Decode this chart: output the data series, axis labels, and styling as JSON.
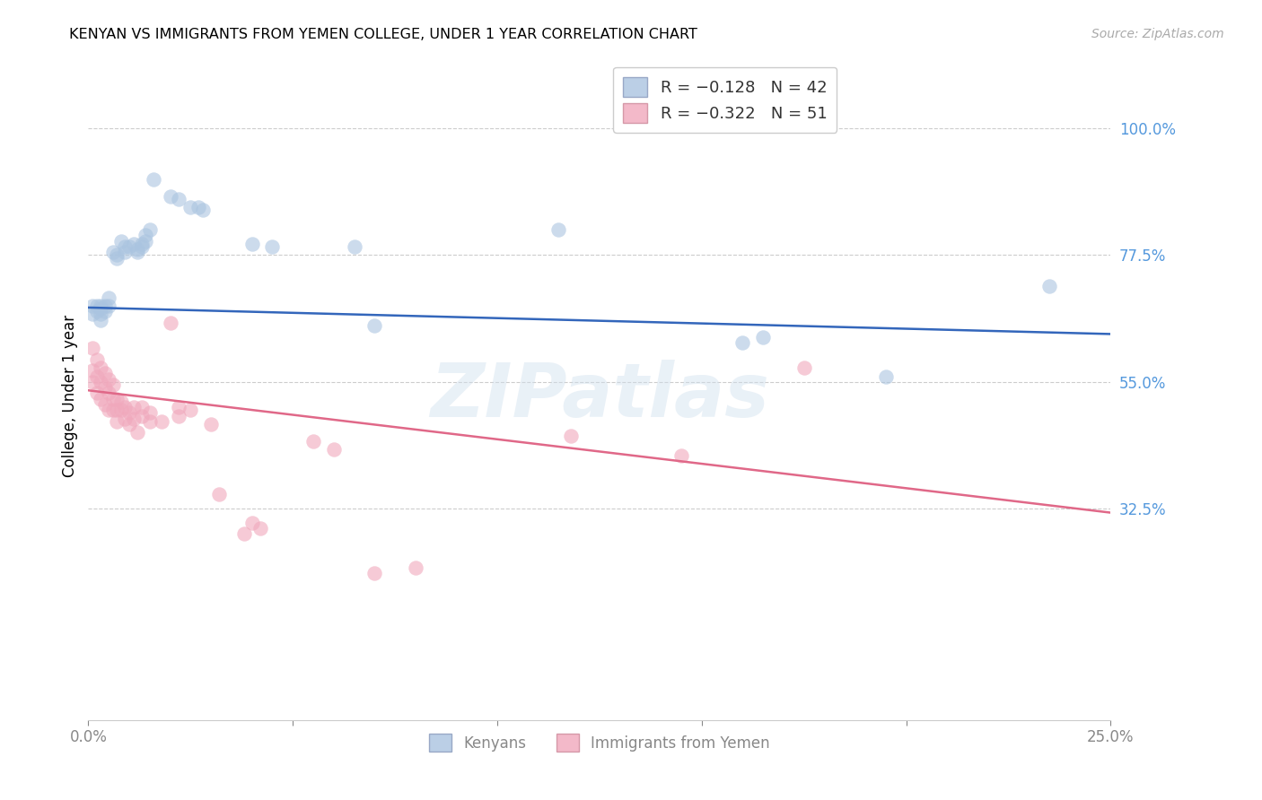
{
  "title": "KENYAN VS IMMIGRANTS FROM YEMEN COLLEGE, UNDER 1 YEAR CORRELATION CHART",
  "source": "Source: ZipAtlas.com",
  "ylabel_label": "College, Under 1 year",
  "legend_entries": [
    {
      "label": "R = −0.128   N = 42",
      "color": "#aac4e0"
    },
    {
      "label": "R = −0.322   N = 51",
      "color": "#f0a8bc"
    }
  ],
  "legend_bottom": [
    "Kenyans",
    "Immigrants from Yemen"
  ],
  "xlim": [
    0.0,
    0.25
  ],
  "ylim": [
    -0.05,
    1.1
  ],
  "watermark": "ZIPatlas",
  "blue_color": "#aac4e0",
  "pink_color": "#f0a8bc",
  "blue_line_color": "#3366bb",
  "pink_line_color": "#e06888",
  "blue_scatter": [
    [
      0.001,
      0.685
    ],
    [
      0.001,
      0.67
    ],
    [
      0.002,
      0.685
    ],
    [
      0.002,
      0.675
    ],
    [
      0.003,
      0.685
    ],
    [
      0.003,
      0.68
    ],
    [
      0.003,
      0.67
    ],
    [
      0.003,
      0.66
    ],
    [
      0.004,
      0.685
    ],
    [
      0.004,
      0.675
    ],
    [
      0.005,
      0.7
    ],
    [
      0.005,
      0.685
    ],
    [
      0.006,
      0.78
    ],
    [
      0.007,
      0.775
    ],
    [
      0.007,
      0.77
    ],
    [
      0.008,
      0.8
    ],
    [
      0.009,
      0.79
    ],
    [
      0.009,
      0.78
    ],
    [
      0.01,
      0.79
    ],
    [
      0.011,
      0.795
    ],
    [
      0.012,
      0.785
    ],
    [
      0.012,
      0.78
    ],
    [
      0.013,
      0.795
    ],
    [
      0.013,
      0.79
    ],
    [
      0.014,
      0.81
    ],
    [
      0.014,
      0.8
    ],
    [
      0.015,
      0.82
    ],
    [
      0.016,
      0.91
    ],
    [
      0.02,
      0.88
    ],
    [
      0.022,
      0.875
    ],
    [
      0.025,
      0.86
    ],
    [
      0.027,
      0.86
    ],
    [
      0.028,
      0.855
    ],
    [
      0.04,
      0.795
    ],
    [
      0.045,
      0.79
    ],
    [
      0.065,
      0.79
    ],
    [
      0.115,
      0.82
    ],
    [
      0.235,
      0.72
    ],
    [
      0.195,
      0.56
    ],
    [
      0.165,
      0.63
    ],
    [
      0.16,
      0.62
    ],
    [
      0.07,
      0.65
    ]
  ],
  "pink_scatter": [
    [
      0.001,
      0.61
    ],
    [
      0.001,
      0.57
    ],
    [
      0.001,
      0.55
    ],
    [
      0.002,
      0.59
    ],
    [
      0.002,
      0.56
    ],
    [
      0.002,
      0.53
    ],
    [
      0.003,
      0.575
    ],
    [
      0.003,
      0.55
    ],
    [
      0.003,
      0.52
    ],
    [
      0.004,
      0.565
    ],
    [
      0.004,
      0.54
    ],
    [
      0.004,
      0.51
    ],
    [
      0.005,
      0.555
    ],
    [
      0.005,
      0.53
    ],
    [
      0.005,
      0.5
    ],
    [
      0.006,
      0.545
    ],
    [
      0.006,
      0.52
    ],
    [
      0.006,
      0.5
    ],
    [
      0.007,
      0.52
    ],
    [
      0.007,
      0.5
    ],
    [
      0.007,
      0.48
    ],
    [
      0.008,
      0.515
    ],
    [
      0.008,
      0.5
    ],
    [
      0.009,
      0.505
    ],
    [
      0.009,
      0.485
    ],
    [
      0.01,
      0.495
    ],
    [
      0.01,
      0.475
    ],
    [
      0.011,
      0.505
    ],
    [
      0.011,
      0.485
    ],
    [
      0.012,
      0.46
    ],
    [
      0.013,
      0.505
    ],
    [
      0.013,
      0.49
    ],
    [
      0.015,
      0.495
    ],
    [
      0.015,
      0.48
    ],
    [
      0.018,
      0.48
    ],
    [
      0.022,
      0.505
    ],
    [
      0.022,
      0.49
    ],
    [
      0.025,
      0.5
    ],
    [
      0.03,
      0.475
    ],
    [
      0.032,
      0.35
    ],
    [
      0.038,
      0.28
    ],
    [
      0.04,
      0.3
    ],
    [
      0.042,
      0.29
    ],
    [
      0.055,
      0.445
    ],
    [
      0.06,
      0.43
    ],
    [
      0.07,
      0.21
    ],
    [
      0.08,
      0.22
    ],
    [
      0.02,
      0.655
    ],
    [
      0.118,
      0.455
    ],
    [
      0.145,
      0.42
    ],
    [
      0.175,
      0.575
    ]
  ],
  "blue_line_x": [
    0.0,
    0.25
  ],
  "blue_line_y": [
    0.682,
    0.635
  ],
  "pink_line_x": [
    0.0,
    0.25
  ],
  "pink_line_y": [
    0.535,
    0.318
  ]
}
